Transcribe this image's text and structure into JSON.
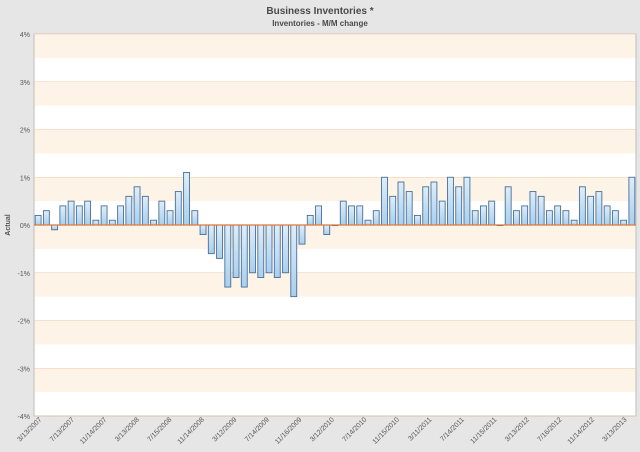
{
  "chart_data": {
    "type": "bar",
    "title": "Business Inventories *",
    "subtitle": "Inventories - M/M change",
    "ylabel": "Actual",
    "xlabel": "",
    "ylim": [
      -4,
      4
    ],
    "yticks": [
      "4%",
      "3%",
      "2%",
      "1%",
      "0%",
      "-1%",
      "-2%",
      "-3%",
      "-4%"
    ],
    "xtick_labels": [
      "3/13/2007",
      "7/13/2007",
      "11/14/2007",
      "3/13/2008",
      "7/15/2008",
      "11/14/2008",
      "3/12/2009",
      "7/14/2009",
      "11/16/2009",
      "3/12/2010",
      "7/14/2010",
      "11/15/2010",
      "3/11/2011",
      "7/14/2011",
      "11/15/2011",
      "3/13/2012",
      "7/16/2012",
      "11/14/2012",
      "3/13/2013"
    ],
    "series": [
      {
        "values": [
          0.2,
          0.3,
          -0.1,
          0.4,
          0.5,
          0.4,
          0.5,
          0.1,
          0.4,
          0.1,
          0.4,
          0.6,
          0.8,
          0.6,
          0.1,
          0.5,
          0.3,
          0.7,
          1.1,
          0.3,
          -0.2,
          -0.6,
          -0.7,
          -1.3,
          -1.1,
          -1.3,
          -1.0,
          -1.1,
          -1.0,
          -1.1,
          -1.0,
          -1.5,
          -0.4,
          0.2,
          0.4,
          -0.2,
          0.0,
          0.5,
          0.4,
          0.4,
          0.1,
          0.3,
          1.0,
          0.6,
          0.9,
          0.7,
          0.2,
          0.8,
          0.9,
          0.5,
          1.0,
          0.8,
          1.0,
          0.3,
          0.4,
          0.5,
          0.0,
          0.8,
          0.3,
          0.4,
          0.7,
          0.6,
          0.3,
          0.4,
          0.3,
          0.1,
          0.8,
          0.6,
          0.7,
          0.4,
          0.3,
          0.1,
          1.0
        ]
      }
    ],
    "grid": true,
    "legend": "none"
  },
  "colors": {
    "band_light": "#ffffff",
    "band_tint": "#fdf3e7",
    "gridline": "#f0c9a8",
    "zero_line": "#e0783a",
    "bar_fill_top": "#ddeefa",
    "bar_fill_bottom": "#a9cfee",
    "bar_stroke": "#4a6f96",
    "axis_text": "#555555"
  }
}
